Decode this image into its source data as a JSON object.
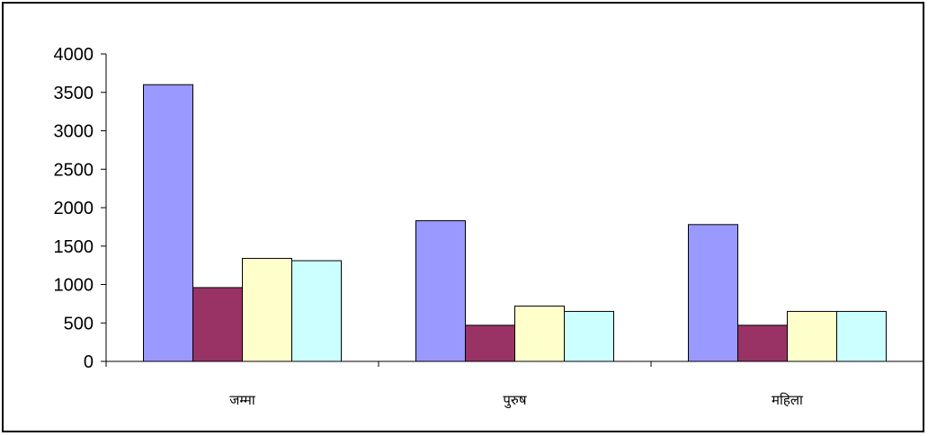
{
  "chart_data": {
    "type": "bar",
    "title": "",
    "xlabel": "",
    "ylabel": "",
    "categories": [
      "जम्मा",
      "पुरुष",
      "महिला"
    ],
    "series": [
      {
        "values": [
          3600,
          1830,
          1780
        ],
        "color": "#9999FF"
      },
      {
        "values": [
          960,
          470,
          470
        ],
        "color": "#993366"
      },
      {
        "values": [
          1340,
          720,
          650
        ],
        "color": "#FFFFCC"
      },
      {
        "values": [
          1310,
          650,
          650
        ],
        "color": "#CCFFFF"
      }
    ],
    "ylim": [
      0,
      4000
    ],
    "yticks": [
      0,
      500,
      1000,
      1500,
      2000,
      2500,
      3000,
      3500,
      4000
    ],
    "grid": false,
    "legend": "none"
  }
}
